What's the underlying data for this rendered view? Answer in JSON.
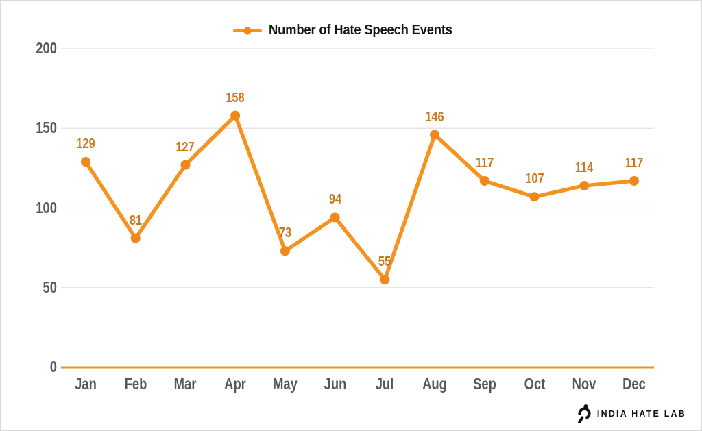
{
  "chart_data": {
    "type": "line",
    "categories": [
      "Jan",
      "Feb",
      "Mar",
      "Apr",
      "May",
      "Jun",
      "Jul",
      "Aug",
      "Sep",
      "Oct",
      "Nov",
      "Dec"
    ],
    "series": [
      {
        "name": "Number of Hate Speech Events",
        "values": [
          129,
          81,
          127,
          158,
          73,
          94,
          55,
          146,
          117,
          107,
          114,
          117
        ]
      }
    ],
    "title": "",
    "xlabel": "",
    "ylabel": "",
    "ylim": [
      0,
      200
    ],
    "yticks": [
      0,
      50,
      100,
      150,
      200
    ],
    "grid": true,
    "legend_position": "top",
    "data_labels": true,
    "colors": {
      "line": "#f6921e",
      "marker": "#f1871b",
      "data_label": "#c8791d",
      "tick_label": "#56575b",
      "gridline": "#e3e3e3",
      "zero_line": "#e8941c",
      "legend_text": "#151515",
      "background": "#ffffff"
    }
  },
  "legend": {
    "label": "Number of Hate Speech Events"
  },
  "footer": {
    "brand": "INDIA HATE LAB",
    "logo_icon": "magnifier-mark-icon"
  }
}
